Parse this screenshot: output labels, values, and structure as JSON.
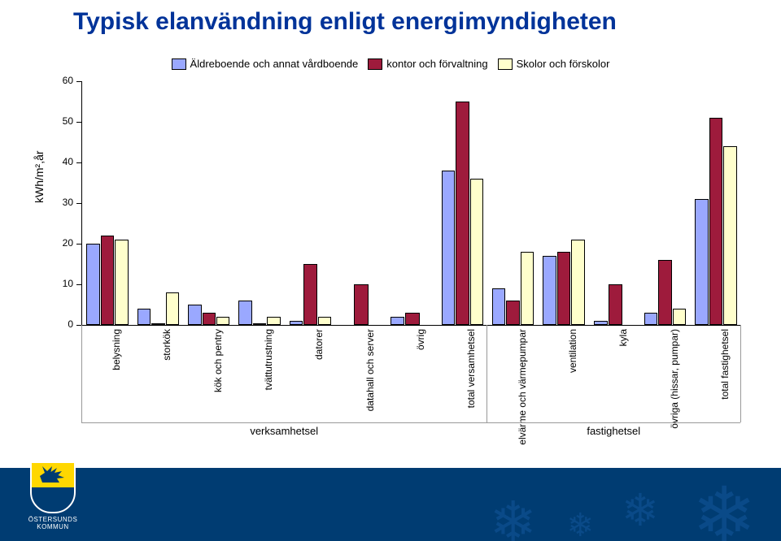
{
  "title": "Typisk elanvändning enligt energimyndigheten",
  "chart": {
    "type": "bar",
    "ylabel": "kWh/m²,år",
    "ylim": [
      0,
      60
    ],
    "ytick_step": 10,
    "background_color": "#ffffff",
    "series": [
      {
        "label": "Äldreboende och annat vårdboende",
        "color": "#9aa8ff"
      },
      {
        "label": "kontor och förvaltning",
        "color": "#9e1b3c"
      },
      {
        "label": "Skolor och förskolor",
        "color": "#ffffcc"
      }
    ],
    "categories": [
      {
        "label": "belysning",
        "values": [
          20,
          22,
          21
        ]
      },
      {
        "label": "storkök",
        "values": [
          4,
          0.5,
          8
        ]
      },
      {
        "label": "kök och pentry",
        "values": [
          5,
          3,
          2
        ]
      },
      {
        "label": "tvättutrustning",
        "values": [
          6,
          0.5,
          2
        ]
      },
      {
        "label": "datorer",
        "values": [
          1,
          15,
          2
        ]
      },
      {
        "label": "datahall och server",
        "values": [
          0,
          10,
          0
        ]
      },
      {
        "label": "övrig",
        "values": [
          2,
          3,
          0
        ]
      },
      {
        "label": "total versamhetsel",
        "values": [
          38,
          55,
          36
        ]
      },
      {
        "label": "elvärme och värmepumpar",
        "values": [
          9,
          6,
          18
        ]
      },
      {
        "label": "ventilation",
        "values": [
          17,
          18,
          21
        ]
      },
      {
        "label": "kyla",
        "values": [
          1,
          10,
          0
        ]
      },
      {
        "label": "övriga (hissar, pumpar)",
        "values": [
          3,
          16,
          4
        ]
      },
      {
        "label": "total fastighetsel",
        "values": [
          31,
          51,
          44
        ]
      }
    ],
    "groups": [
      {
        "label": "verksamhetsel",
        "from": 0,
        "to": 7
      },
      {
        "label": "fastighetsel",
        "from": 8,
        "to": 12
      }
    ],
    "label_fontsize": 12,
    "bar_border_color": "#000000"
  },
  "footer": {
    "municipality": "ÖSTERSUNDS KOMMUN",
    "band_color": "#003c72",
    "snow_color": "#0a4a88"
  }
}
